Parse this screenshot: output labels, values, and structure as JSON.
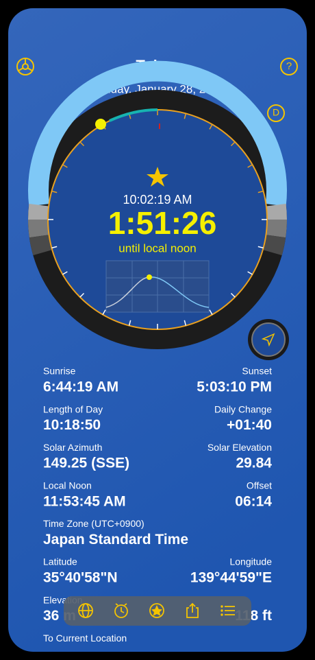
{
  "header": {
    "title": "Tokyo",
    "date": "Sunday, January 28, 2024",
    "help_button": "?",
    "mode_button": "D"
  },
  "dial": {
    "current_time": "10:02:19 AM",
    "countdown": "1:51:26",
    "countdown_caption": "until local noon"
  },
  "details": {
    "rows": [
      [
        {
          "label": "Sunrise",
          "value": "6:44:19 AM"
        },
        {
          "label": "Sunset",
          "value": "5:03:10 PM"
        }
      ],
      [
        {
          "label": "Length of Day",
          "value": "10:18:50"
        },
        {
          "label": "Daily Change",
          "value": "+01:40"
        }
      ],
      [
        {
          "label": "Solar Azimuth",
          "value": "149.25 (SSE)"
        },
        {
          "label": "Solar Elevation",
          "value": "29.84"
        }
      ],
      [
        {
          "label": "Local Noon",
          "value": "11:53:45 AM"
        },
        {
          "label": "Offset",
          "value": "06:14"
        }
      ],
      [
        {
          "label": "Time Zone (UTC+0900)",
          "value": "Japan Standard Time"
        }
      ],
      [
        {
          "label": "Latitude",
          "value": "35°40'58\"N"
        },
        {
          "label": "Longitude",
          "value": "139°44'59\"E"
        }
      ],
      [
        {
          "label": "Elevation",
          "value": "36 m"
        },
        {
          "value": "118 ft"
        }
      ],
      [
        {
          "label": "To Current Location"
        }
      ]
    ]
  }
}
